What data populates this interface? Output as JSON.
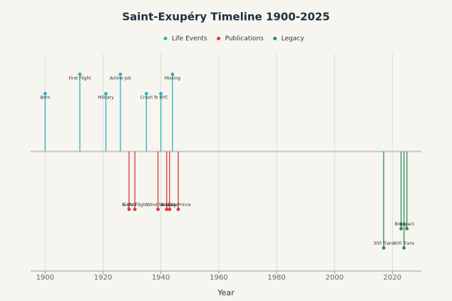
{
  "chart_data": {
    "type": "timeline",
    "title": "Saint-Exupéry Timeline 1900-2025",
    "x_label": "Year",
    "xlim": [
      1895,
      2030
    ],
    "xticks": [
      1900,
      1920,
      1940,
      1960,
      1980,
      2000,
      2020
    ],
    "ylim": [
      -1.55,
      1.27
    ],
    "grid": true,
    "legend": "top",
    "series": [
      {
        "name": "Life Events",
        "color": "#2ab3c3",
        "x": [
          1900,
          1912,
          1921,
          1926,
          1935,
          1940,
          1944
        ],
        "values": [
          0.75,
          1,
          0.75,
          1,
          0.75,
          0.75,
          1
        ],
        "labels": [
          "Born",
          "First Flight",
          "Military",
          "Airline Job",
          "Crash",
          "To NYC",
          "Missing"
        ]
      },
      {
        "name": "Publications",
        "color": "#d9363e",
        "x": [
          1929,
          1931,
          1939,
          1942,
          1943,
          1946
        ],
        "values": [
          -0.75,
          -0.75,
          -0.75,
          -0.75,
          -0.75,
          -0.75
        ],
        "labels": [
          "S. Mail",
          "Night Flight",
          "Wind Sand",
          "Arras",
          "Hostage",
          "Little Prince"
        ]
      },
      {
        "name": "Legacy",
        "color": "#2e8b57",
        "x": [
          2017,
          2023,
          2024,
          2025
        ],
        "values": [
          -1.25,
          -1,
          -1.25,
          -1
        ],
        "labels": [
          "300 Trans",
          "Biopic",
          "600 Trans",
          "Impact"
        ]
      }
    ]
  }
}
